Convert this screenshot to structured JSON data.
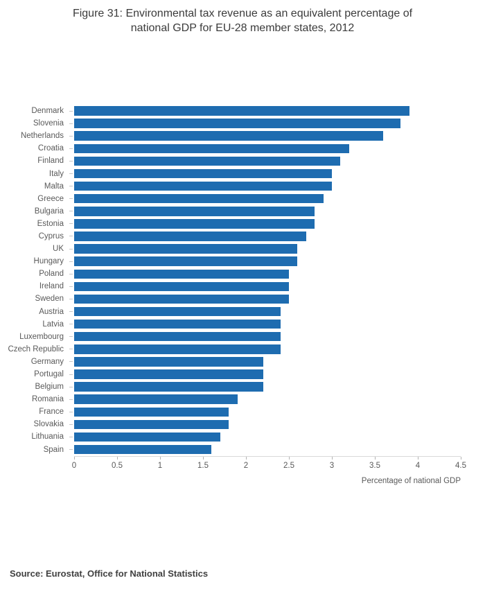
{
  "title": {
    "line1": "Figure 31: Environmental tax revenue as an equivalent percentage of",
    "line2": "national GDP for EU-28 member states, 2012"
  },
  "source": "Source: Eurostat, Office for National Statistics",
  "chart_data": {
    "type": "bar",
    "orientation": "horizontal",
    "title": "Figure 31: Environmental tax revenue as an equivalent percentage of national GDP for EU-28 member states, 2012",
    "xlabel": "Percentage of national GDP",
    "ylabel": "",
    "xlim": [
      0,
      4.5
    ],
    "x_ticks": [
      0,
      0.5,
      1,
      1.5,
      2,
      2.5,
      3,
      3.5,
      4,
      4.5
    ],
    "x_tick_labels": [
      "0",
      "0.5",
      "1",
      "1.5",
      "2",
      "2.5",
      "3",
      "3.5",
      "4",
      "4.5"
    ],
    "grid": false,
    "legend": false,
    "bar_color": "#1e6cb0",
    "categories": [
      "Denmark",
      "Slovenia",
      "Netherlands",
      "Croatia",
      "Finland",
      "Italy",
      "Malta",
      "Greece",
      "Bulgaria",
      "Estonia",
      "Cyprus",
      "UK",
      "Hungary",
      "Poland",
      "Ireland",
      "Sweden",
      "Austria",
      "Latvia",
      "Luxembourg",
      "Czech Republic",
      "Germany",
      "Portugal",
      "Belgium",
      "Romania",
      "France",
      "Slovakia",
      "Lithuania",
      "Spain"
    ],
    "values": [
      3.9,
      3.8,
      3.6,
      3.2,
      3.1,
      3.0,
      3.0,
      2.9,
      2.8,
      2.8,
      2.7,
      2.6,
      2.6,
      2.5,
      2.5,
      2.5,
      2.4,
      2.4,
      2.4,
      2.4,
      2.2,
      2.2,
      2.2,
      1.9,
      1.8,
      1.8,
      1.7,
      1.6
    ]
  }
}
